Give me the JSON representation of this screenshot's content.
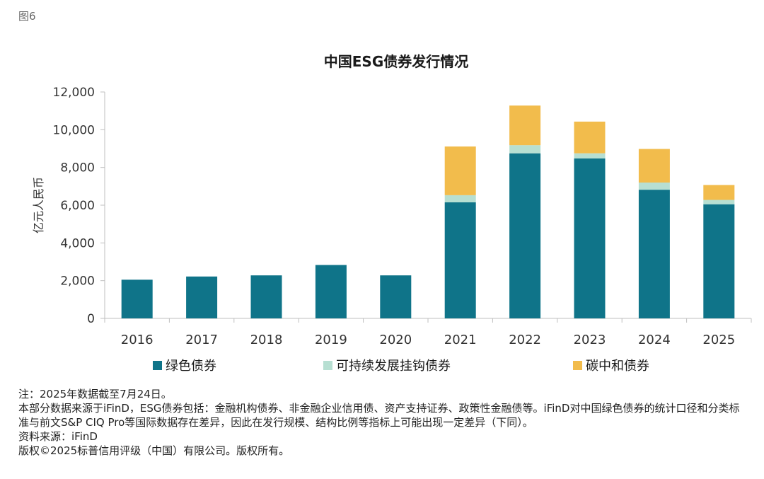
{
  "figure_label": "图6",
  "chart_data": {
    "type": "bar",
    "stacked": true,
    "title": "中国ESG债券发行情况",
    "xlabel": "",
    "ylabel": "亿元人民币",
    "ylim": [
      0,
      12000
    ],
    "yticks": [
      0,
      2000,
      4000,
      6000,
      8000,
      10000,
      12000
    ],
    "ytick_labels": [
      "0",
      "2,000",
      "4,000",
      "6,000",
      "8,000",
      "10,000",
      "12,000"
    ],
    "categories": [
      "2016",
      "2017",
      "2018",
      "2019",
      "2020",
      "2021",
      "2022",
      "2023",
      "2024",
      "2025"
    ],
    "series": [
      {
        "name": "绿色债券",
        "color": "#0f7489",
        "values": [
          2050,
          2220,
          2280,
          2830,
          2280,
          6150,
          8750,
          8480,
          6820,
          6050
        ]
      },
      {
        "name": "可持续发展挂钩债券",
        "color": "#b7dfd2",
        "values": [
          0,
          0,
          0,
          0,
          0,
          380,
          430,
          270,
          380,
          230
        ]
      },
      {
        "name": "碳中和债券",
        "color": "#f2bc4c",
        "values": [
          0,
          0,
          0,
          0,
          0,
          2580,
          2100,
          1680,
          1780,
          790
        ]
      }
    ],
    "grid": false,
    "legend_position": "bottom"
  },
  "notes": [
    "注：2025年数据截至7月24日。",
    "本部分数据来源于iFinD，ESG债券包括：金融机构债券、非金融企业信用债、资产支持证券、政策性金融债等。iFinD对中国绿色债券的统计口径和分类标准与前文S&P CIQ Pro等国际数据存在差异，因此在发行规模、结构比例等指标上可能出现一定差异（下同）。",
    "资料来源：iFinD",
    "版权©2025标普信用评级（中国）有限公司。版权所有。"
  ]
}
